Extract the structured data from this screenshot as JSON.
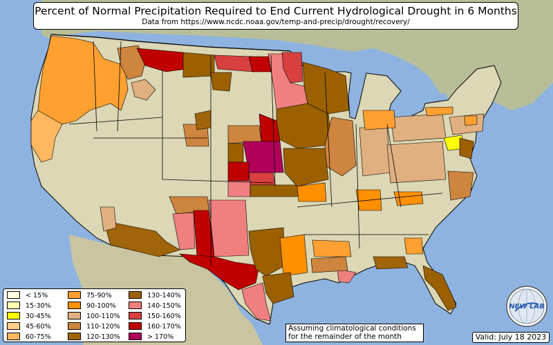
{
  "title": {
    "main": "Percent of Normal Precipitation Required to End Current Hydrological Drought in 6 Months",
    "sub": "Data from https://www.ncdc.noaa.gov/temp-and-precip/drought/recovery/"
  },
  "legend": {
    "items": [
      {
        "label": "< 15%",
        "color": "#ffffe0"
      },
      {
        "label": "15-30%",
        "color": "#ffffb0"
      },
      {
        "label": "30-45%",
        "color": "#ffff00"
      },
      {
        "label": "45-60%",
        "color": "#ffd08c"
      },
      {
        "label": "60-75%",
        "color": "#ffb860"
      },
      {
        "label": "75-90%",
        "color": "#ffa030"
      },
      {
        "label": "90-100%",
        "color": "#ff9000"
      },
      {
        "label": "100-110%",
        "color": "#e0b080"
      },
      {
        "label": "110-120%",
        "color": "#cd853f"
      },
      {
        "label": "120-130%",
        "color": "#a0640a"
      },
      {
        "label": "130-140%",
        "color": "#9b6000"
      },
      {
        "label": "140-150%",
        "color": "#f08080"
      },
      {
        "label": "150-160%",
        "color": "#d84040"
      },
      {
        "label": "160-170%",
        "color": "#c00000"
      },
      {
        "label": "> 170%",
        "color": "#b0005a"
      }
    ]
  },
  "note": {
    "line1": "Assuming climatological conditions",
    "line2": "for the remainder of the month"
  },
  "valid": "Valid: July 18 2023",
  "logo": {
    "text": "NEW LAB",
    "icon": "globe-logo-icon"
  },
  "colors": {
    "ocean": "#8fb3e0",
    "land": "#dcd7b4",
    "border": "#000000"
  }
}
